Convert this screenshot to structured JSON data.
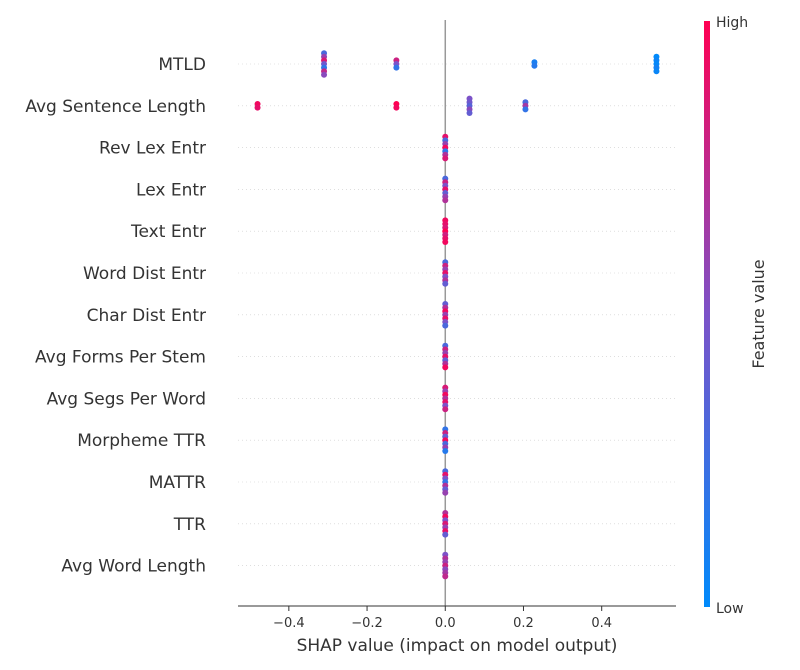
{
  "chart_data": {
    "type": "scatter",
    "subtype": "shap-beeswarm",
    "title": "",
    "xlabel": "SHAP value (impact on model output)",
    "ylabel": "",
    "xlim": [
      -0.53,
      0.59
    ],
    "xticks": [
      -0.4,
      -0.2,
      0.0,
      0.2,
      0.4
    ],
    "xtick_labels": [
      "−0.4",
      "−0.2",
      "0.0",
      "0.2",
      "0.4"
    ],
    "grid": false,
    "colorbar": {
      "label": "Feature value",
      "high_label": "High",
      "low_label": "Low",
      "low_color": "#008afb",
      "mid_color": "#7c52c8",
      "high_color": "#ff0052"
    },
    "features": [
      {
        "name": "MTLD",
        "points": [
          {
            "x": -0.31,
            "v": 0.3
          },
          {
            "x": -0.31,
            "v": 0.6
          },
          {
            "x": -0.31,
            "v": 0.85
          },
          {
            "x": -0.31,
            "v": 0.45
          },
          {
            "x": -0.31,
            "v": 0.2
          },
          {
            "x": -0.31,
            "v": 0.75
          },
          {
            "x": -0.31,
            "v": 0.55
          },
          {
            "x": -0.125,
            "v": 0.8
          },
          {
            "x": -0.125,
            "v": 0.5
          },
          {
            "x": -0.125,
            "v": 0.2
          },
          {
            "x": 0.228,
            "v": 0.1
          },
          {
            "x": 0.228,
            "v": 0.15
          },
          {
            "x": 0.54,
            "v": 0.0
          },
          {
            "x": 0.54,
            "v": 0.05
          },
          {
            "x": 0.54,
            "v": 0.02
          },
          {
            "x": 0.54,
            "v": 0.08
          },
          {
            "x": 0.54,
            "v": 0.04
          }
        ]
      },
      {
        "name": "Avg Sentence Length",
        "points": [
          {
            "x": -0.48,
            "v": 0.95
          },
          {
            "x": -0.48,
            "v": 0.9
          },
          {
            "x": -0.125,
            "v": 1.0
          },
          {
            "x": -0.125,
            "v": 0.95
          },
          {
            "x": 0.062,
            "v": 0.5
          },
          {
            "x": 0.062,
            "v": 0.45
          },
          {
            "x": 0.062,
            "v": 0.35
          },
          {
            "x": 0.062,
            "v": 0.55
          },
          {
            "x": 0.062,
            "v": 0.4
          },
          {
            "x": 0.205,
            "v": 0.3
          },
          {
            "x": 0.205,
            "v": 0.65
          },
          {
            "x": 0.205,
            "v": 0.2
          }
        ]
      },
      {
        "name": "Rev Lex Entr",
        "points": [
          {
            "x": 0.0,
            "v": 0.9
          },
          {
            "x": 0.0,
            "v": 0.3
          },
          {
            "x": 0.0,
            "v": 0.6
          },
          {
            "x": 0.0,
            "v": 0.95
          },
          {
            "x": 0.0,
            "v": 0.2
          },
          {
            "x": 0.0,
            "v": 0.7
          },
          {
            "x": 0.0,
            "v": 0.85
          }
        ]
      },
      {
        "name": "Lex Entr",
        "points": [
          {
            "x": 0.0,
            "v": 0.3
          },
          {
            "x": 0.0,
            "v": 0.8
          },
          {
            "x": 0.0,
            "v": 0.5
          },
          {
            "x": 0.0,
            "v": 0.9
          },
          {
            "x": 0.0,
            "v": 0.4
          },
          {
            "x": 0.0,
            "v": 0.6
          },
          {
            "x": 0.0,
            "v": 0.7
          }
        ]
      },
      {
        "name": "Text Entr",
        "points": [
          {
            "x": 0.0,
            "v": 0.95
          },
          {
            "x": 0.0,
            "v": 0.9
          },
          {
            "x": 0.0,
            "v": 0.85
          },
          {
            "x": 0.0,
            "v": 1.0
          },
          {
            "x": 0.0,
            "v": 0.8
          },
          {
            "x": 0.0,
            "v": 0.9
          },
          {
            "x": 0.0,
            "v": 0.95
          }
        ]
      },
      {
        "name": "Word Dist Entr",
        "points": [
          {
            "x": 0.0,
            "v": 0.3
          },
          {
            "x": 0.0,
            "v": 0.8
          },
          {
            "x": 0.0,
            "v": 0.6
          },
          {
            "x": 0.0,
            "v": 0.9
          },
          {
            "x": 0.0,
            "v": 0.5
          },
          {
            "x": 0.0,
            "v": 0.7
          },
          {
            "x": 0.0,
            "v": 0.4
          }
        ]
      },
      {
        "name": "Char Dist Entr",
        "points": [
          {
            "x": 0.0,
            "v": 0.4
          },
          {
            "x": 0.0,
            "v": 0.7
          },
          {
            "x": 0.0,
            "v": 0.95
          },
          {
            "x": 0.0,
            "v": 0.6
          },
          {
            "x": 0.0,
            "v": 0.9
          },
          {
            "x": 0.0,
            "v": 0.5
          },
          {
            "x": 0.0,
            "v": 0.3
          }
        ]
      },
      {
        "name": "Avg Forms Per Stem",
        "points": [
          {
            "x": 0.0,
            "v": 0.3
          },
          {
            "x": 0.0,
            "v": 0.8
          },
          {
            "x": 0.0,
            "v": 0.6
          },
          {
            "x": 0.0,
            "v": 0.9
          },
          {
            "x": 0.0,
            "v": 0.4
          },
          {
            "x": 0.0,
            "v": 0.7
          },
          {
            "x": 0.0,
            "v": 0.95
          }
        ]
      },
      {
        "name": "Avg Segs Per Word",
        "points": [
          {
            "x": 0.0,
            "v": 0.85
          },
          {
            "x": 0.0,
            "v": 0.6
          },
          {
            "x": 0.0,
            "v": 0.95
          },
          {
            "x": 0.0,
            "v": 0.7
          },
          {
            "x": 0.0,
            "v": 0.9
          },
          {
            "x": 0.0,
            "v": 0.5
          },
          {
            "x": 0.0,
            "v": 0.8
          }
        ]
      },
      {
        "name": "Morpheme TTR",
        "points": [
          {
            "x": 0.0,
            "v": 0.2
          },
          {
            "x": 0.0,
            "v": 0.8
          },
          {
            "x": 0.0,
            "v": 0.4
          },
          {
            "x": 0.0,
            "v": 0.95
          },
          {
            "x": 0.0,
            "v": 0.3
          },
          {
            "x": 0.0,
            "v": 0.6
          },
          {
            "x": 0.0,
            "v": 0.15
          }
        ]
      },
      {
        "name": "MATTR",
        "points": [
          {
            "x": 0.0,
            "v": 0.3
          },
          {
            "x": 0.0,
            "v": 0.9
          },
          {
            "x": 0.0,
            "v": 0.5
          },
          {
            "x": 0.0,
            "v": 0.2
          },
          {
            "x": 0.0,
            "v": 0.7
          },
          {
            "x": 0.0,
            "v": 0.4
          },
          {
            "x": 0.0,
            "v": 0.6
          }
        ]
      },
      {
        "name": "TTR",
        "points": [
          {
            "x": 0.0,
            "v": 0.7
          },
          {
            "x": 0.0,
            "v": 0.95
          },
          {
            "x": 0.0,
            "v": 0.5
          },
          {
            "x": 0.0,
            "v": 0.85
          },
          {
            "x": 0.0,
            "v": 0.6
          },
          {
            "x": 0.0,
            "v": 0.9
          },
          {
            "x": 0.0,
            "v": 0.4
          }
        ]
      },
      {
        "name": "Avg Word Length",
        "points": [
          {
            "x": 0.0,
            "v": 0.5
          },
          {
            "x": 0.0,
            "v": 0.7
          },
          {
            "x": 0.0,
            "v": 0.6
          },
          {
            "x": 0.0,
            "v": 0.8
          },
          {
            "x": 0.0,
            "v": 0.55
          },
          {
            "x": 0.0,
            "v": 0.65
          },
          {
            "x": 0.0,
            "v": 0.75
          }
        ]
      }
    ]
  }
}
